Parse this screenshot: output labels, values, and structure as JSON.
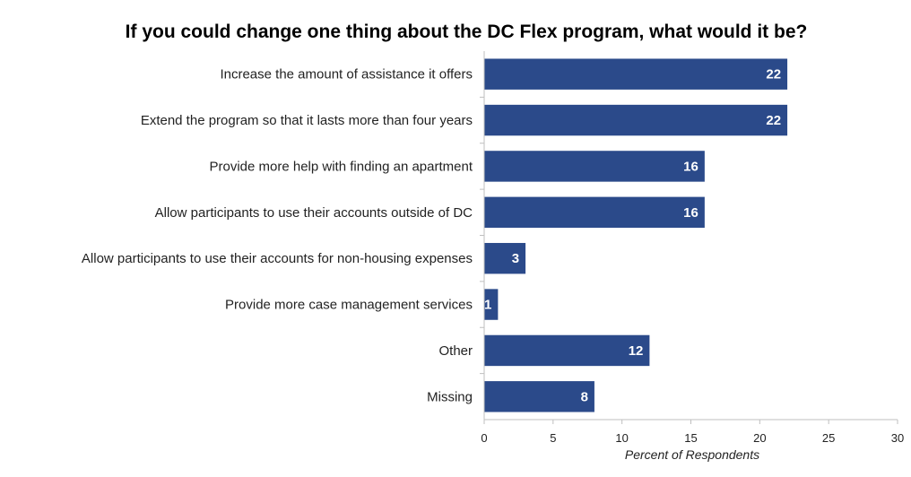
{
  "chart_data": {
    "type": "bar",
    "orientation": "horizontal",
    "title": "If you could change one thing about the DC Flex program, what would it be?",
    "categories": [
      "Increase the amount of assistance it offers",
      "Extend the program so that it lasts more than four years",
      "Provide more help with finding an apartment",
      "Allow participants to use their accounts outside of DC",
      "Allow participants to use their accounts for non-housing expenses",
      "Provide more case management services",
      "Other",
      "Missing"
    ],
    "values": [
      22,
      22,
      16,
      16,
      3,
      1,
      12,
      8
    ],
    "xlabel": "Percent of Respondents",
    "ylabel": "",
    "xlim": [
      0,
      30
    ],
    "xticks": [
      0,
      5,
      10,
      15,
      20,
      25,
      30
    ],
    "bar_color": "#2b4a8a",
    "grid": false
  }
}
